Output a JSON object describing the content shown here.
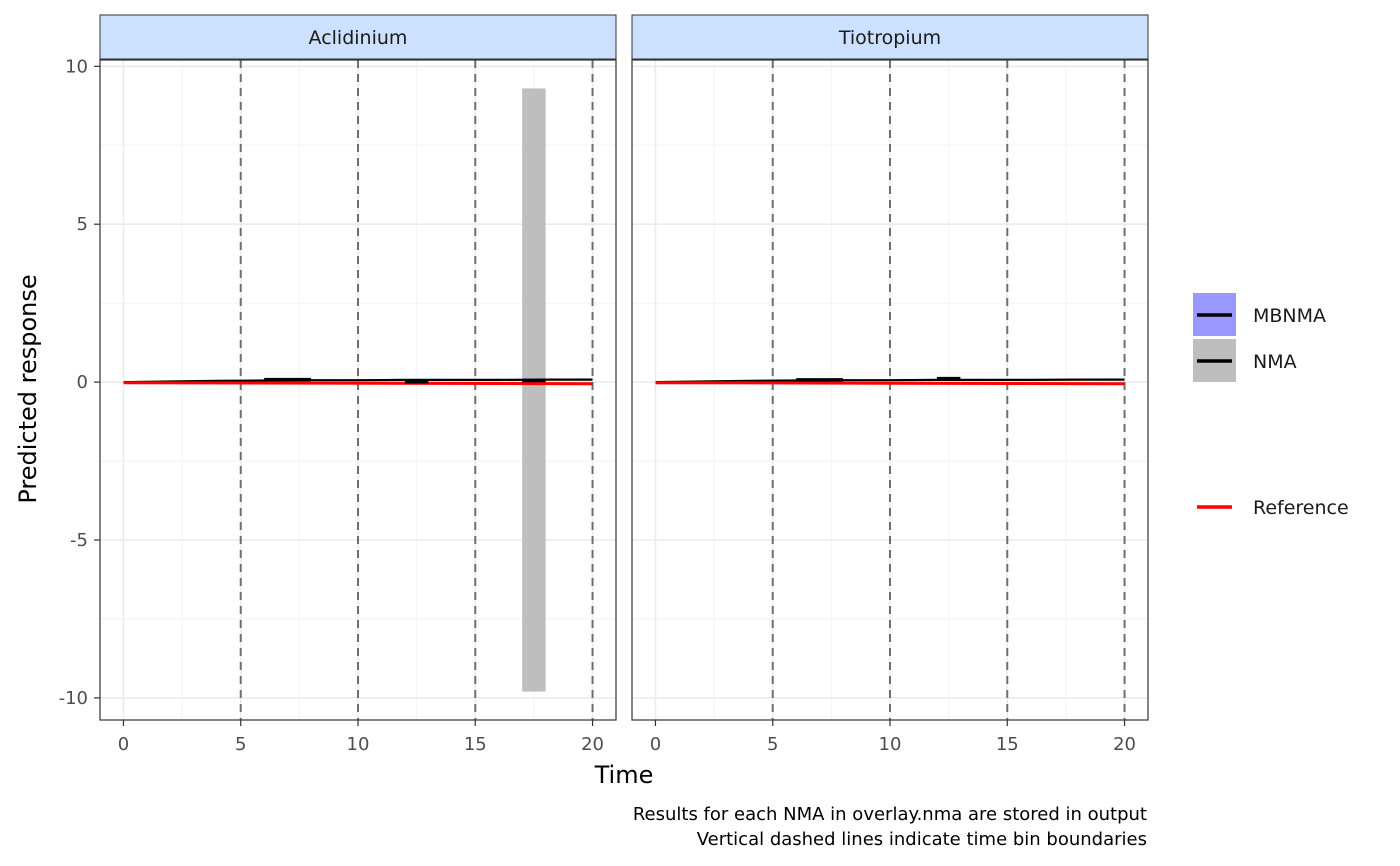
{
  "chart_data": {
    "type": "line",
    "xlabel": "Time",
    "ylabel": "Predicted response",
    "caption": [
      "Results for each NMA in overlay.nma are stored in output",
      "Vertical dashed lines indicate time bin boundaries"
    ],
    "xlim": [
      -1,
      21
    ],
    "ylim": [
      -10.7,
      10.2
    ],
    "x_ticks": [
      0,
      5,
      10,
      15,
      20
    ],
    "y_ticks": [
      -10,
      -5,
      0,
      5,
      10
    ],
    "x_tick_labels": [
      "0",
      "5",
      "10",
      "15",
      "20"
    ],
    "y_tick_labels": [
      "-10",
      "-5",
      "0",
      "5",
      "10"
    ],
    "bin_boundaries": [
      5,
      10,
      15,
      20
    ],
    "grid": true,
    "legend_position": "right",
    "colors": {
      "mbnma_fill": "#9999ff",
      "nma_fill": "#bebebe",
      "reference": "#ff0000",
      "line": "#000000",
      "strip": "#cce0ff"
    },
    "legend": [
      {
        "label": "MBNMA",
        "fill": "#9999ff",
        "line": "#000000"
      },
      {
        "label": "NMA",
        "fill": "#bebebe",
        "line": "#000000"
      },
      {
        "label": "Reference",
        "fill": null,
        "line": "#ff0000"
      }
    ],
    "panels": [
      {
        "title": "Aclidinium",
        "mbnma": {
          "x": [
            0,
            2,
            4,
            6,
            8,
            10,
            12,
            14,
            16,
            18,
            20
          ],
          "y": [
            0.0,
            0.02,
            0.04,
            0.05,
            0.06,
            0.06,
            0.07,
            0.07,
            0.07,
            0.08,
            0.08
          ]
        },
        "reference": {
          "x": [
            0,
            20
          ],
          "y": [
            -0.02,
            -0.05
          ]
        },
        "nma_bins": [
          {
            "x_start": 6,
            "x_end": 8,
            "mean": 0.08,
            "lower": 0.05,
            "upper": 0.11
          },
          {
            "x_start": 12,
            "x_end": 13,
            "mean": 0.01,
            "lower": -0.02,
            "upper": 0.04
          },
          {
            "x_start": 17,
            "x_end": 18,
            "mean": 0.05,
            "lower": -9.8,
            "upper": 9.3
          }
        ]
      },
      {
        "title": "Tiotropium",
        "mbnma": {
          "x": [
            0,
            2,
            4,
            6,
            8,
            10,
            12,
            14,
            16,
            18,
            20
          ],
          "y": [
            0.0,
            0.02,
            0.04,
            0.05,
            0.06,
            0.06,
            0.07,
            0.07,
            0.07,
            0.08,
            0.08
          ]
        },
        "reference": {
          "x": [
            0,
            20
          ],
          "y": [
            -0.02,
            -0.05
          ]
        },
        "nma_bins": [
          {
            "x_start": 6,
            "x_end": 8,
            "mean": 0.07,
            "lower": 0.04,
            "upper": 0.1
          },
          {
            "x_start": 12,
            "x_end": 13,
            "mean": 0.11,
            "lower": 0.08,
            "upper": 0.14
          }
        ]
      }
    ]
  }
}
